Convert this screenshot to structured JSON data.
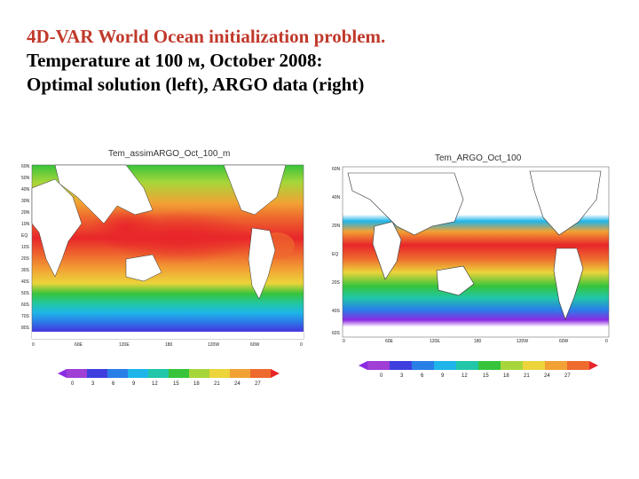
{
  "slide": {
    "title_line1": "4D-VAR World Ocean initialization problem.",
    "title_line2": "Temperature at 100 м, October 2008:",
    "title_line3": "Optimal solution (left), ARGO data (right)"
  },
  "left_map": {
    "title": "Tem_assimARGO_Oct_100_m",
    "lat_labels": [
      "60N",
      "50N",
      "40N",
      "30N",
      "20N",
      "10N",
      "EQ",
      "10S",
      "20S",
      "30S",
      "40S",
      "50S",
      "60S",
      "70S",
      "80S"
    ],
    "lon_labels": [
      "0",
      "60E",
      "120E",
      "180",
      "120W",
      "60W",
      "0"
    ]
  },
  "right_map": {
    "title": "Tem_ARGO_Oct_100",
    "lat_labels": [
      "60N",
      "40N",
      "20N",
      "EQ",
      "20S",
      "40S",
      "60S"
    ],
    "lon_labels": [
      "0",
      "60E",
      "120E",
      "180",
      "120W",
      "60W",
      "0"
    ]
  },
  "colorbar": {
    "ticks": [
      "0",
      "3",
      "6",
      "9",
      "12",
      "15",
      "18",
      "21",
      "24",
      "27"
    ],
    "colors": [
      "#8a2be2",
      "#9f3fd6",
      "#3f3fe0",
      "#2a7ee8",
      "#1fb5e8",
      "#21c7a8",
      "#37c43a",
      "#a7d63a",
      "#ecd43a",
      "#f2a134",
      "#ee6a2e",
      "#e8262a"
    ]
  }
}
